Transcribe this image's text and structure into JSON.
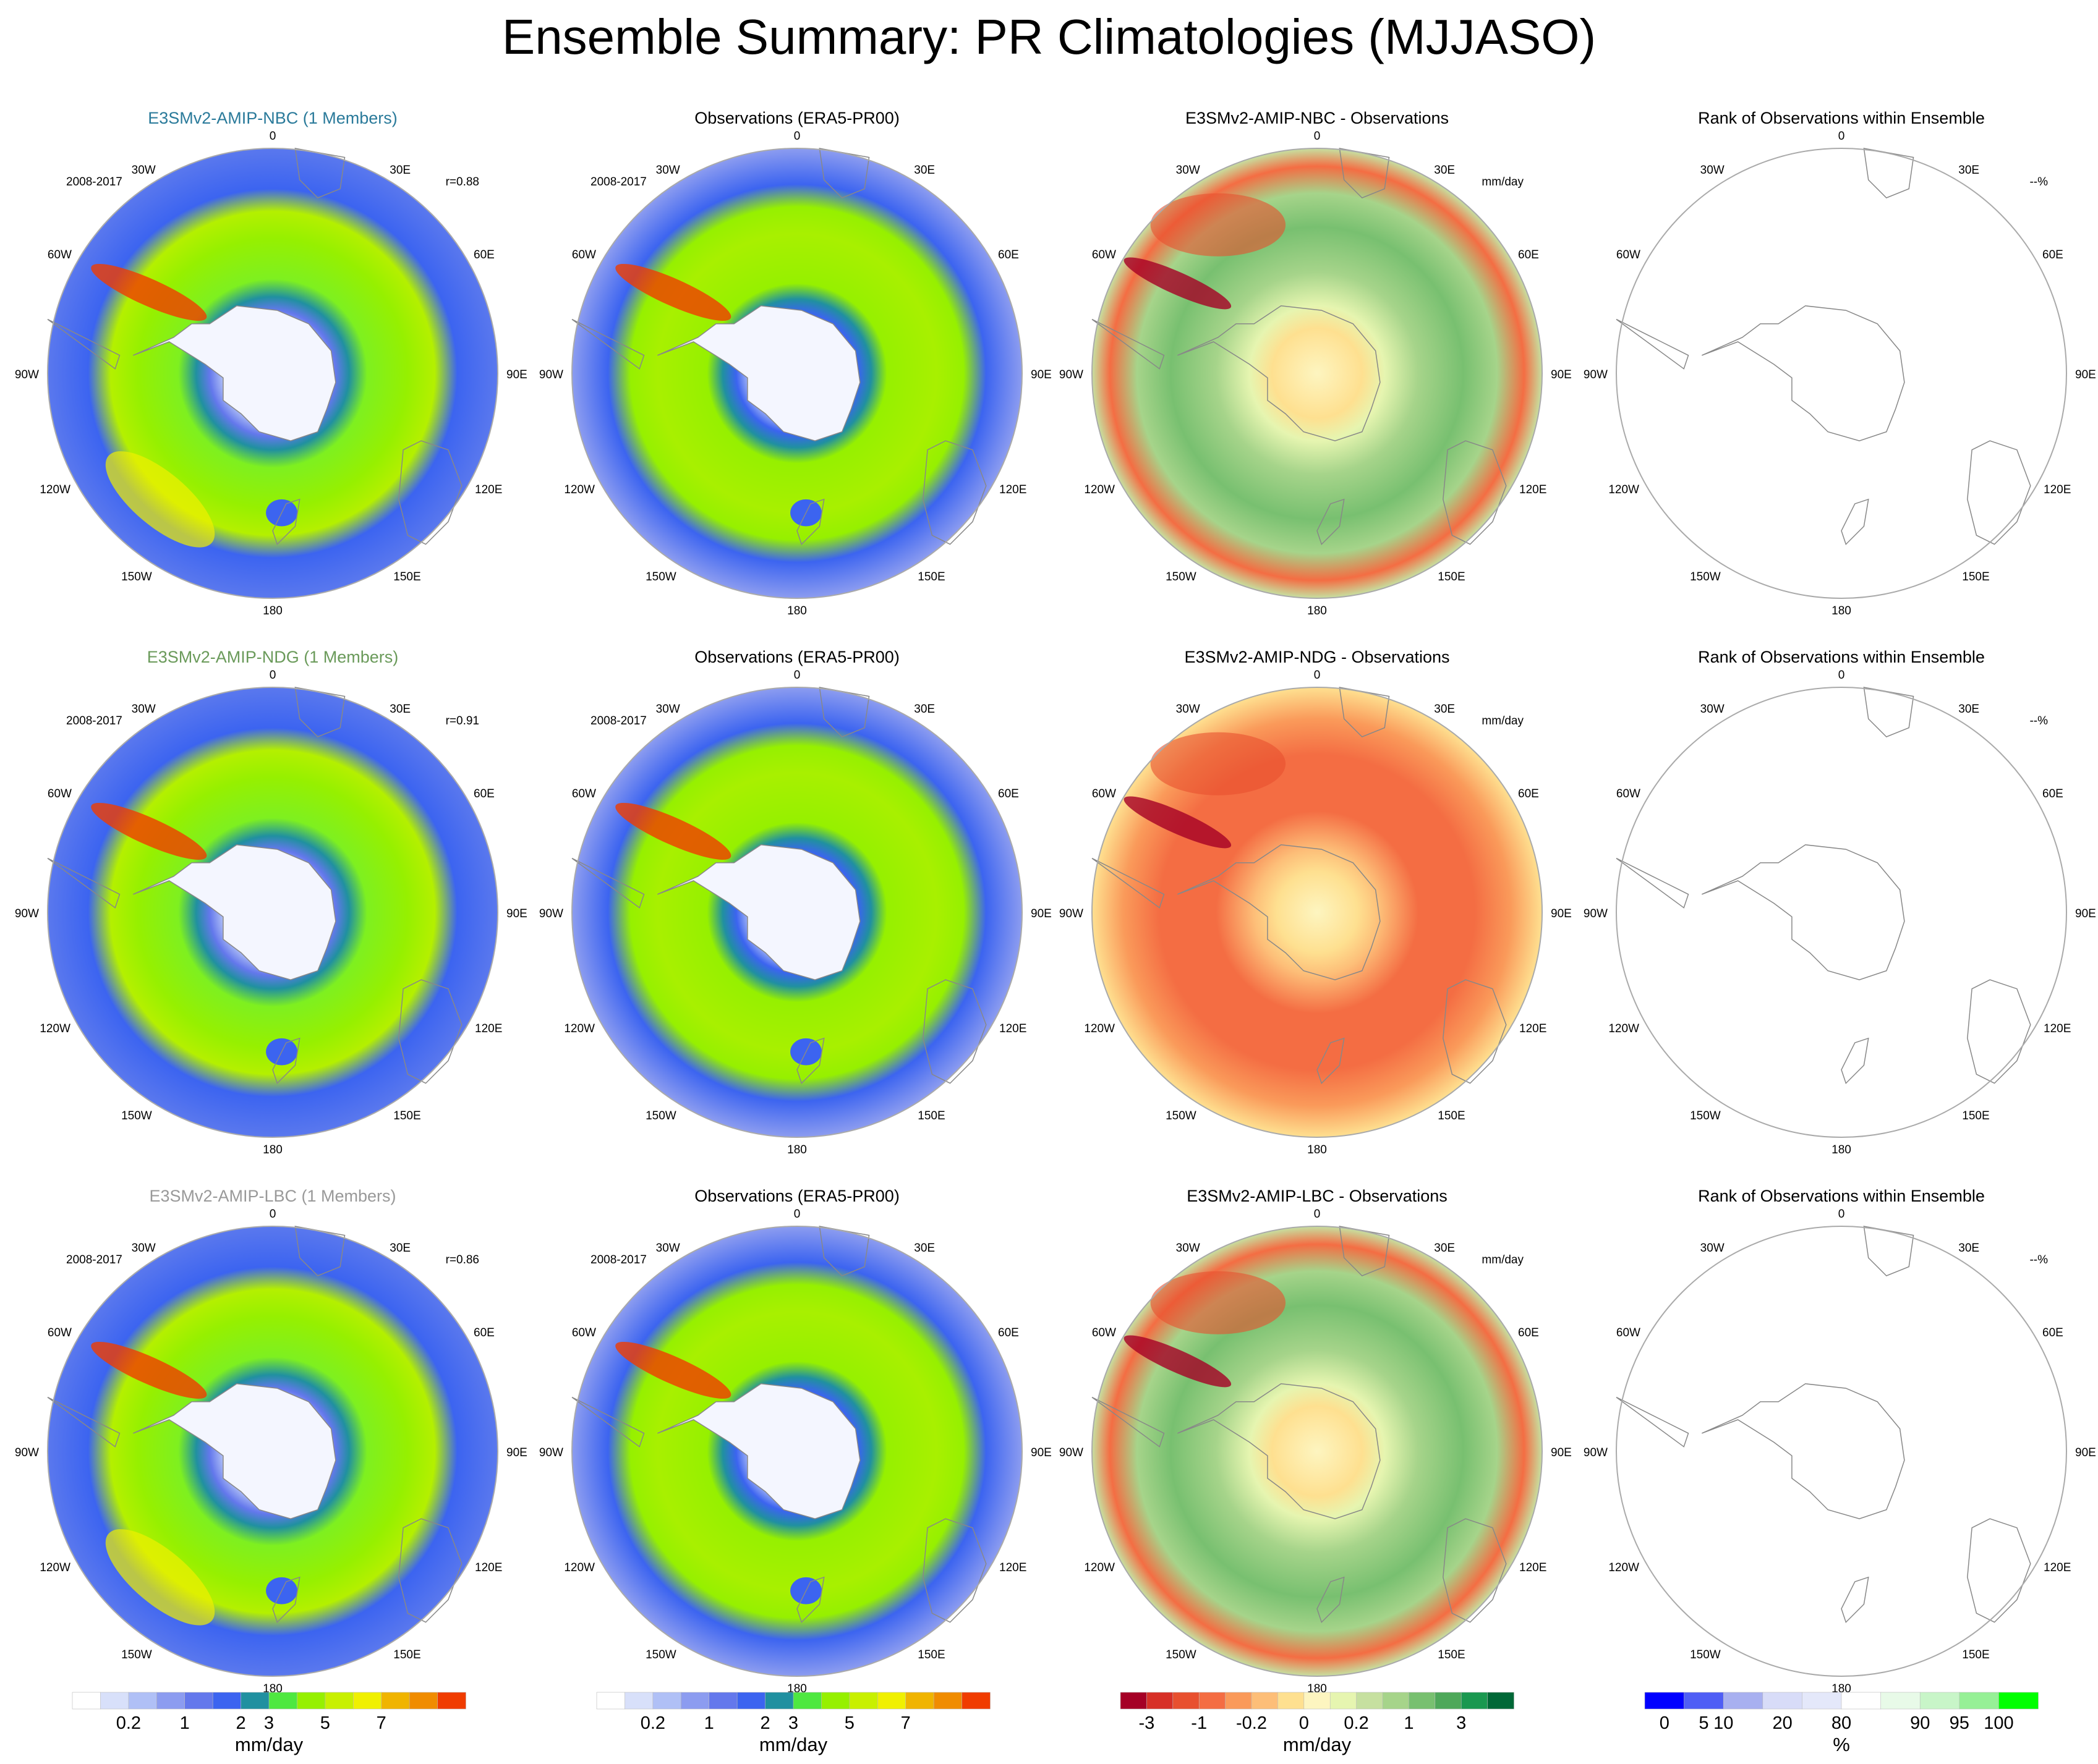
{
  "title": "Ensemble Summary: PR Climatologies (MJJASO)",
  "colors": {
    "model_nbc": "#2a7a9a",
    "model_ndg": "#6a9a5a",
    "model_lbc": "#999999"
  },
  "chart_data": {
    "type": "heatmap",
    "projection": "south-polar-stereographic",
    "period": "2008-2017",
    "longitude_labels": [
      "0",
      "30E",
      "60E",
      "90E",
      "120E",
      "150E",
      "180",
      "150W",
      "120W",
      "90W",
      "60W",
      "30W"
    ],
    "rows": [
      {
        "panels": [
          {
            "kind": "model",
            "title": "E3SMv2-AMIP-NBC (1 Members)",
            "title_color": "#2a7a9a",
            "period": "2008-2017",
            "corner": "r=0.88"
          },
          {
            "kind": "obs",
            "title": "Observations (ERA5-PR00)",
            "period": "2008-2017",
            "corner": ""
          },
          {
            "kind": "diff",
            "title": "E3SMv2-AMIP-NBC - Observations",
            "period": "",
            "corner": "mm/day"
          },
          {
            "kind": "rank",
            "title": "Rank of Observations within Ensemble",
            "period": "",
            "corner": "--%"
          }
        ]
      },
      {
        "panels": [
          {
            "kind": "model",
            "title": "E3SMv2-AMIP-NDG (1 Members)",
            "title_color": "#6a9a5a",
            "period": "2008-2017",
            "corner": "r=0.91"
          },
          {
            "kind": "obs",
            "title": "Observations (ERA5-PR00)",
            "period": "2008-2017",
            "corner": ""
          },
          {
            "kind": "diff",
            "title": "E3SMv2-AMIP-NDG - Observations",
            "period": "",
            "corner": "mm/day"
          },
          {
            "kind": "rank",
            "title": "Rank of Observations within Ensemble",
            "period": "",
            "corner": "--%"
          }
        ]
      },
      {
        "panels": [
          {
            "kind": "model",
            "title": "E3SMv2-AMIP-LBC (1 Members)",
            "title_color": "#999999",
            "period": "2008-2017",
            "corner": "r=0.86"
          },
          {
            "kind": "obs",
            "title": "Observations (ERA5-PR00)",
            "period": "2008-2017",
            "corner": ""
          },
          {
            "kind": "diff",
            "title": "E3SMv2-AMIP-LBC - Observations",
            "period": "",
            "corner": "mm/day"
          },
          {
            "kind": "rank",
            "title": "Rank of Observations within Ensemble",
            "period": "",
            "corner": "--%"
          }
        ]
      }
    ],
    "colorbars": [
      {
        "for": "model",
        "colors": [
          "#ffffff",
          "#d8e0fa",
          "#b0c0f6",
          "#8c9cf0",
          "#6478ec",
          "#3c64f0",
          "#2090a0",
          "#4ee840",
          "#96f000",
          "#c8f000",
          "#f0f000",
          "#f0b400",
          "#f08c00",
          "#f03c00"
        ],
        "tick_labels": [
          "0.2",
          "1",
          "2",
          "3",
          "5",
          "7"
        ],
        "tick_boundaries": [
          2,
          4,
          6,
          7,
          9,
          11
        ],
        "label": "mm/day"
      },
      {
        "for": "obs",
        "colors": [
          "#ffffff",
          "#d8e0fa",
          "#b0c0f6",
          "#8c9cf0",
          "#6478ec",
          "#3c64f0",
          "#2090a0",
          "#4ee840",
          "#96f000",
          "#c8f000",
          "#f0f000",
          "#f0b400",
          "#f08c00",
          "#f03c00"
        ],
        "tick_labels": [
          "0.2",
          "1",
          "2",
          "3",
          "5",
          "7"
        ],
        "tick_boundaries": [
          2,
          4,
          6,
          7,
          9,
          11
        ],
        "label": "mm/day"
      },
      {
        "for": "diff",
        "colors": [
          "#a50026",
          "#d73027",
          "#e8502f",
          "#f46d43",
          "#fa9a5a",
          "#fdbe78",
          "#fee090",
          "#fdf5c0",
          "#e6f5b0",
          "#c6e0a0",
          "#a6d48a",
          "#78c070",
          "#4ea85a",
          "#1a9850",
          "#006837"
        ],
        "tick_labels": [
          "-3",
          "-1",
          "-0.2",
          "0",
          "0.2",
          "1",
          "3"
        ],
        "tick_boundaries": [
          1,
          3,
          5,
          7,
          9,
          11,
          13
        ],
        "label": "mm/day"
      },
      {
        "for": "rank",
        "colors": [
          "#0000ff",
          "#4f5ef5",
          "#a8b0f0",
          "#d8dcf8",
          "#e4e8fa",
          "#ffffff",
          "#e8fae8",
          "#c8f5c8",
          "#96f096",
          "#00ff00"
        ],
        "tick_labels": [
          "0",
          "5",
          "10",
          "20",
          "80",
          "90",
          "95",
          "100"
        ],
        "tick_boundaries": [
          0.5,
          1.5,
          2,
          3.5,
          5,
          7,
          8,
          9
        ],
        "label": "%"
      }
    ]
  }
}
